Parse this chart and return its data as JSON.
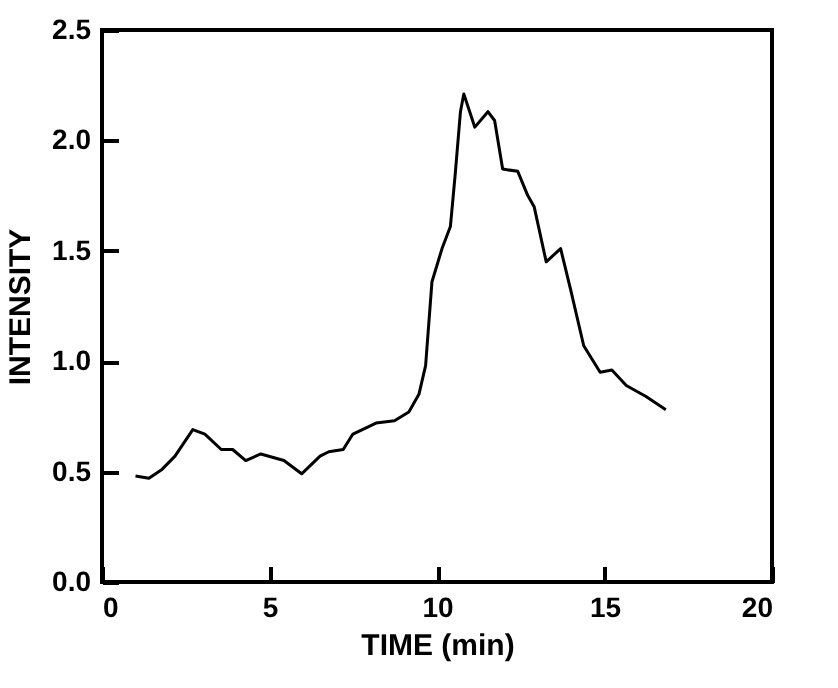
{
  "chart_data": {
    "type": "line",
    "xlabel": "TIME (min)",
    "ylabel": "INTENSITY",
    "x": [
      1.0,
      1.4,
      1.79,
      2.18,
      2.71,
      3.07,
      3.56,
      3.9,
      4.29,
      4.74,
      5.43,
      5.96,
      6.51,
      6.77,
      7.2,
      7.49,
      8.18,
      8.73,
      9.16,
      9.46,
      9.66,
      9.85,
      10.15,
      10.4,
      10.54,
      10.7,
      10.8,
      11.13,
      11.52,
      11.72,
      11.96,
      12.41,
      12.71,
      12.9,
      13.26,
      13.69,
      13.98,
      14.38,
      14.87,
      15.22,
      15.65,
      16.24,
      16.83
    ],
    "series": [
      {
        "color": "#000000",
        "values": [
          0.48,
          0.47,
          0.51,
          0.57,
          0.69,
          0.67,
          0.6,
          0.6,
          0.55,
          0.58,
          0.55,
          0.49,
          0.57,
          0.59,
          0.6,
          0.67,
          0.72,
          0.73,
          0.77,
          0.85,
          0.98,
          1.36,
          1.51,
          1.61,
          1.84,
          2.13,
          2.21,
          2.06,
          2.13,
          2.09,
          1.87,
          1.86,
          1.75,
          1.7,
          1.45,
          1.51,
          1.33,
          1.07,
          0.95,
          0.96,
          0.89,
          0.84,
          0.78
        ]
      }
    ],
    "xlim": [
      0,
      20
    ],
    "xticks": [
      0,
      5,
      10,
      15,
      20
    ],
    "ylim": [
      0,
      2.5
    ],
    "yticks": [
      {
        "value": 0,
        "label": "0.0"
      },
      {
        "value": 0.5,
        "label": "0.5"
      },
      {
        "value": 1,
        "label": "1.0"
      },
      {
        "value": 1.5,
        "label": "1.5"
      },
      {
        "value": 2,
        "label": "2.0"
      },
      {
        "value": 2.5,
        "label": "2.5"
      }
    ],
    "grid": false,
    "marker": "none",
    "line_style": "solid"
  }
}
